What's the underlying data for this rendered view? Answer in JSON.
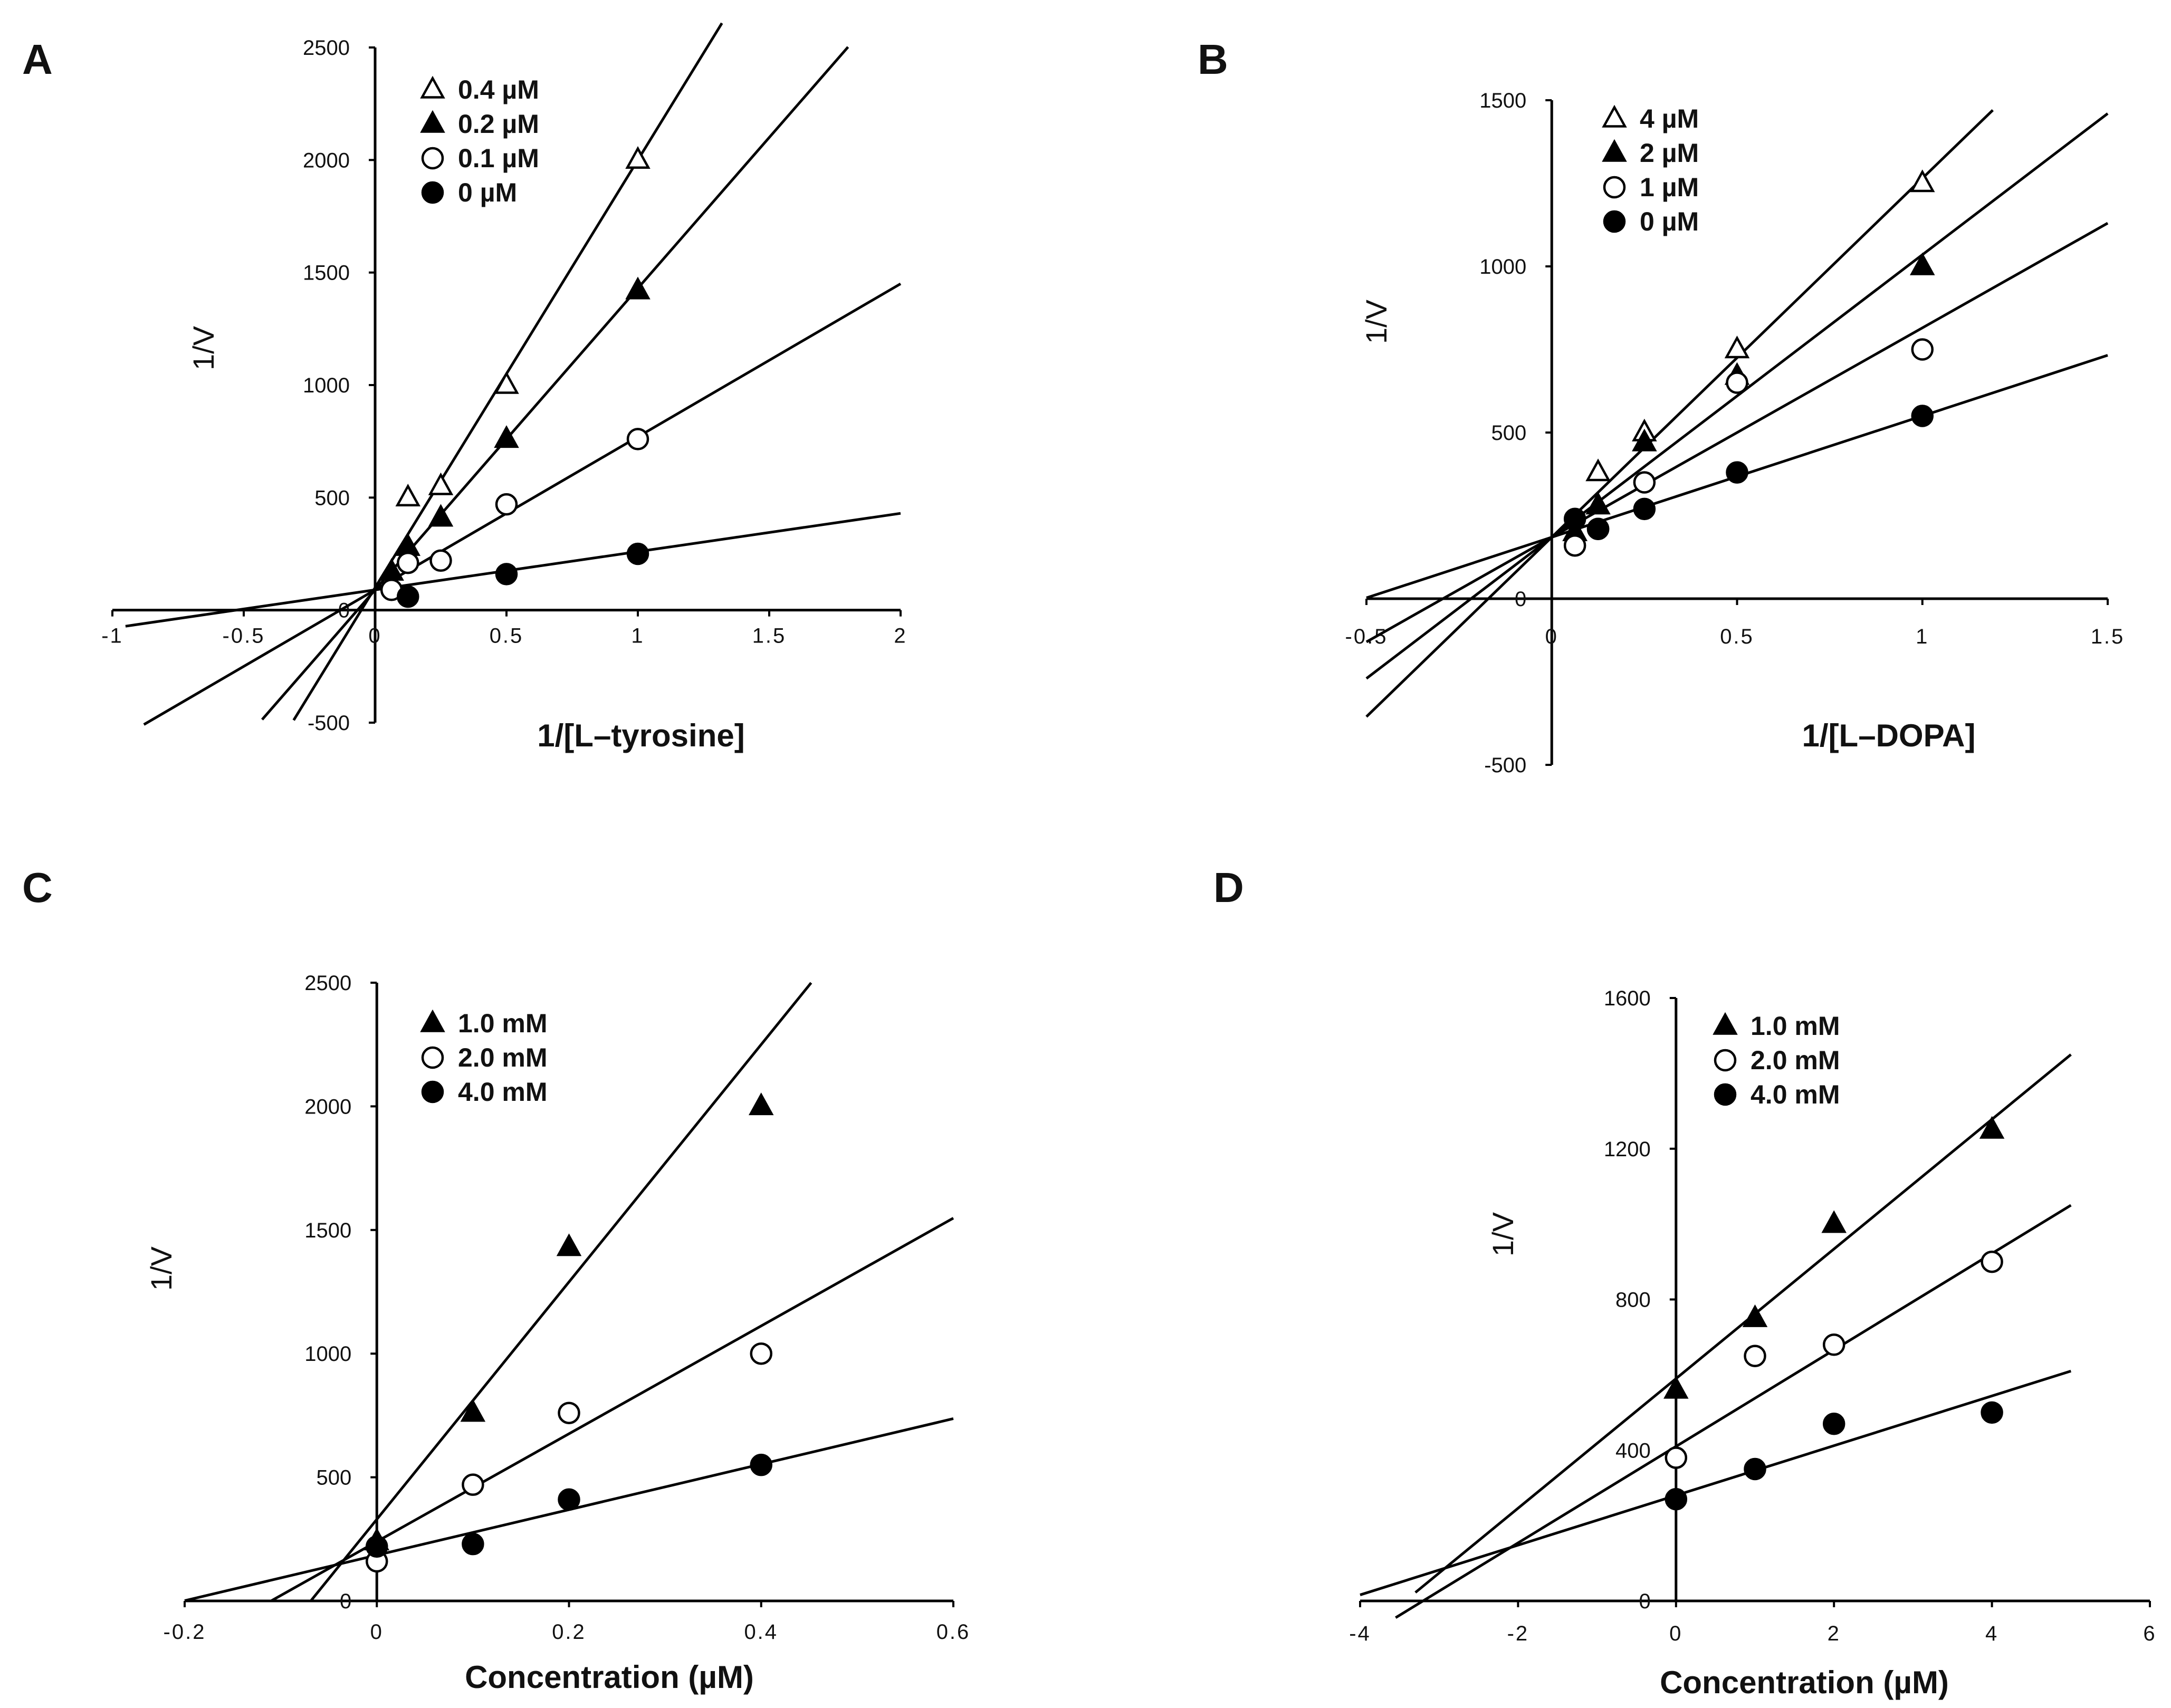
{
  "chart_data": [
    {
      "panel": "A",
      "type": "scatter",
      "title": "",
      "xlabel": "1/[L–tyrosine]",
      "ylabel": "1/V",
      "xlim": [
        -1,
        2
      ],
      "ylim": [
        -500,
        2500
      ],
      "xticks": [
        -1,
        -0.5,
        0,
        0.5,
        1,
        1.5,
        2
      ],
      "yticks": [
        -500,
        0,
        500,
        1000,
        1500,
        2000,
        2500
      ],
      "xtick_labels": [
        "-1",
        "-0.5",
        "0",
        "0.5",
        "1",
        "1.5",
        "2"
      ],
      "ytick_labels": [
        "-500",
        "0",
        "500",
        "1000",
        "1500",
        "2000",
        "2500"
      ],
      "legend_position": "top-left",
      "series": [
        {
          "name": "0.4 µM",
          "marker": "triangle-open",
          "x": [
            0.125,
            0.25,
            0.5,
            1
          ],
          "y": [
            500,
            550,
            1000,
            2000
          ],
          "fit": {
            "slope": 1900,
            "intercept": 100,
            "x_from": -0.31,
            "x_to": 1.32
          }
        },
        {
          "name": "0.2 µM",
          "marker": "triangle-filled",
          "x": [
            0.0625,
            0.125,
            0.25,
            0.5,
            1
          ],
          "y": [
            170,
            280,
            410,
            760,
            1420
          ],
          "fit": {
            "slope": 1340,
            "intercept": 90,
            "x_from": -0.43,
            "x_to": 1.8
          }
        },
        {
          "name": "0.1 µM",
          "marker": "circle-open",
          "x": [
            0.0625,
            0.125,
            0.25,
            0.5,
            1
          ],
          "y": [
            90,
            210,
            220,
            470,
            760
          ],
          "fit": {
            "slope": 680,
            "intercept": 90,
            "x_from": -0.88,
            "x_to": 2
          }
        },
        {
          "name": "0 µM",
          "marker": "circle-filled",
          "x": [
            0.125,
            0.5,
            1
          ],
          "y": [
            60,
            160,
            250
          ],
          "fit": {
            "slope": 170,
            "intercept": 90,
            "x_from": -0.95,
            "x_to": 2
          }
        }
      ]
    },
    {
      "panel": "B",
      "type": "scatter",
      "title": "",
      "xlabel": "1/[L–DOPA]",
      "ylabel": "1/V",
      "xlim": [
        -0.5,
        1.5
      ],
      "ylim": [
        -500,
        1500
      ],
      "xticks": [
        -0.5,
        0,
        0.5,
        1,
        1.5
      ],
      "yticks": [
        -500,
        0,
        500,
        1000,
        1500
      ],
      "xtick_labels": [
        "-0.5",
        "0",
        "0.5",
        "1",
        "1.5"
      ],
      "ytick_labels": [
        "-500",
        "0",
        "500",
        "1000",
        "1500"
      ],
      "legend_position": "top-left",
      "series": [
        {
          "name": "4 µM",
          "marker": "triangle-open",
          "x": [
            0.0625,
            0.125,
            0.25,
            0.5,
            1
          ],
          "y": [
            200,
            380,
            500,
            750,
            1250
          ],
          "fit": {
            "slope": 1080,
            "intercept": 185,
            "x_from": -0.5,
            "x_to": 1.19
          }
        },
        {
          "name": "2 µM",
          "marker": "triangle-filled",
          "x": [
            0.0625,
            0.125,
            0.25,
            0.5,
            1
          ],
          "y": [
            200,
            280,
            470,
            670,
            1000
          ],
          "fit": {
            "slope": 850,
            "intercept": 185,
            "x_from": -0.5,
            "x_to": 1.5
          }
        },
        {
          "name": "1 µM",
          "marker": "circle-open",
          "x": [
            0.0625,
            0.125,
            0.25,
            0.5,
            1
          ],
          "y": [
            160,
            210,
            350,
            650,
            750
          ],
          "fit": {
            "slope": 630,
            "intercept": 185,
            "x_from": -0.5,
            "x_to": 1.5
          }
        },
        {
          "name": "0 µM",
          "marker": "circle-filled",
          "x": [
            0.0625,
            0.125,
            0.25,
            0.5,
            1
          ],
          "y": [
            240,
            210,
            270,
            380,
            550
          ],
          "fit": {
            "slope": 365,
            "intercept": 185,
            "x_from": -0.5,
            "x_to": 1.5
          }
        }
      ]
    },
    {
      "panel": "C",
      "type": "scatter",
      "title": "",
      "xlabel": "Concentration (µM)",
      "ylabel": "1/V",
      "xlim": [
        -0.2,
        0.6
      ],
      "ylim": [
        0,
        2500
      ],
      "xticks": [
        -0.2,
        0,
        0.2,
        0.4,
        0.6
      ],
      "yticks": [
        0,
        500,
        1000,
        1500,
        2000,
        2500
      ],
      "xtick_labels": [
        "-0.2",
        "0",
        "0.2",
        "0.4",
        "0.6"
      ],
      "ytick_labels": [
        "0",
        "500",
        "1000",
        "1500",
        "2000",
        "2500"
      ],
      "legend_position": "top-left",
      "series": [
        {
          "name": "1.0 mM",
          "marker": "triangle-filled",
          "x": [
            0,
            0.1,
            0.2,
            0.4
          ],
          "y": [
            240,
            760,
            1430,
            2000
          ],
          "fit": {
            "slope": 4800,
            "intercept": 330,
            "x_from": -0.069,
            "x_to": 0.452
          }
        },
        {
          "name": "2.0 mM",
          "marker": "circle-open",
          "x": [
            0,
            0.1,
            0.2,
            0.4
          ],
          "y": [
            160,
            470,
            760,
            1000
          ],
          "fit": {
            "slope": 2180,
            "intercept": 240,
            "x_from": -0.11,
            "x_to": 0.6
          }
        },
        {
          "name": "4.0 mM",
          "marker": "circle-filled",
          "x": [
            0,
            0.1,
            0.2,
            0.4
          ],
          "y": [
            220,
            230,
            410,
            550
          ],
          "fit": {
            "slope": 920,
            "intercept": 185,
            "x_from": -0.2,
            "x_to": 0.6
          }
        }
      ]
    },
    {
      "panel": "D",
      "type": "scatter",
      "title": "",
      "xlabel": "Concentration (µM)",
      "ylabel": "1/V",
      "xlim": [
        -4,
        6
      ],
      "ylim": [
        0,
        1600
      ],
      "xticks": [
        -4,
        -2,
        0,
        2,
        4,
        6
      ],
      "yticks": [
        0,
        400,
        800,
        1200,
        1600
      ],
      "xtick_labels": [
        "-4",
        "-2",
        "0",
        "2",
        "4",
        "6"
      ],
      "ytick_labels": [
        "0",
        "400",
        "800",
        "1200",
        "1600"
      ],
      "legend_position": "top-left",
      "series": [
        {
          "name": "1.0 mM",
          "marker": "triangle-filled",
          "x": [
            0,
            1,
            2,
            4
          ],
          "y": [
            560,
            750,
            1000,
            1250
          ],
          "fit": {
            "slope": 172,
            "intercept": 590,
            "x_from": -3.3,
            "x_to": 5
          }
        },
        {
          "name": "2.0 mM",
          "marker": "circle-open",
          "x": [
            0,
            1,
            2,
            4
          ],
          "y": [
            380,
            650,
            680,
            900
          ],
          "fit": {
            "slope": 128,
            "intercept": 410,
            "x_from": -3.55,
            "x_to": 5
          }
        },
        {
          "name": "4.0 mM",
          "marker": "circle-filled",
          "x": [
            0,
            1,
            2,
            4
          ],
          "y": [
            270,
            350,
            470,
            500
          ],
          "fit": {
            "slope": 66,
            "intercept": 280,
            "x_from": -4,
            "x_to": 5
          }
        }
      ]
    }
  ]
}
